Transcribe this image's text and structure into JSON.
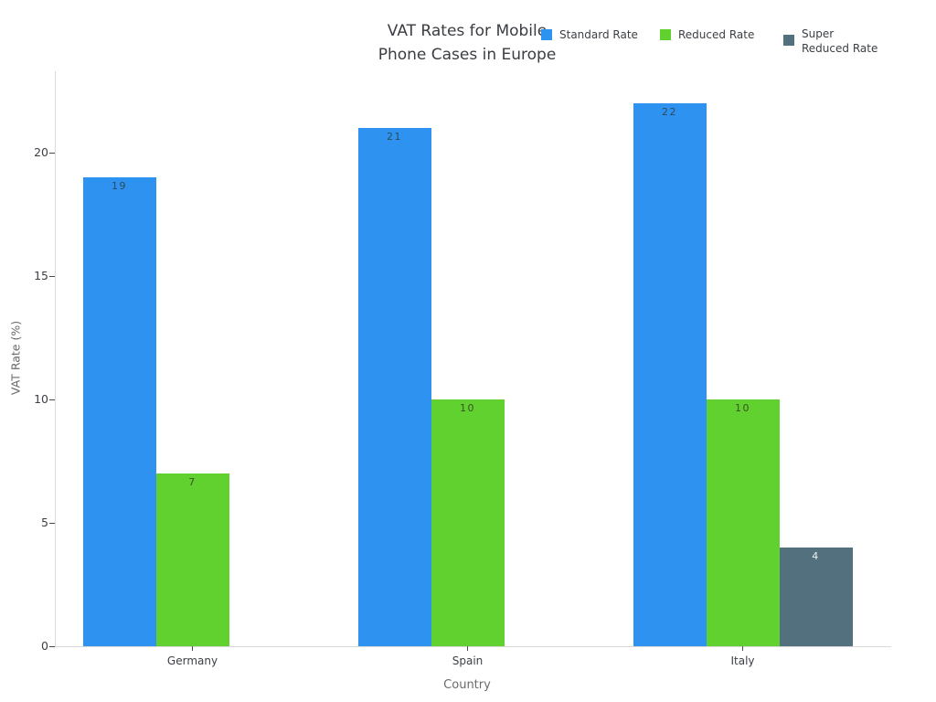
{
  "chart_data": {
    "type": "bar",
    "title": "VAT Rates for Mobile Phone Cases in Europe",
    "title_lines": [
      "VAT Rates for Mobile",
      "Phone Cases in Europe"
    ],
    "xlabel": "Country",
    "ylabel": "VAT Rate (%)",
    "categories": [
      "Germany",
      "Spain",
      "Italy"
    ],
    "series": [
      {
        "name": "Standard Rate",
        "legend_label": "Standard Rate",
        "color": "#2E93F0",
        "label_color": "#2d4a5a",
        "values": [
          19,
          21,
          22
        ]
      },
      {
        "name": "Reduced Rate",
        "legend_label": "Reduced Rate",
        "color": "#61D12F",
        "label_color": "#3a5324",
        "values": [
          7,
          10,
          10
        ]
      },
      {
        "name": "Super Reduced Rate",
        "legend_label": "Super\nReduced Rate",
        "color": "#52707E",
        "label_color": "#edf2f4",
        "values": [
          null,
          null,
          4
        ]
      }
    ],
    "yticks": [
      0,
      5,
      10,
      15,
      20
    ],
    "ylim": [
      0,
      23.3
    ],
    "grid": false,
    "legend_position": "top-right",
    "background_color": "#ffffff"
  }
}
